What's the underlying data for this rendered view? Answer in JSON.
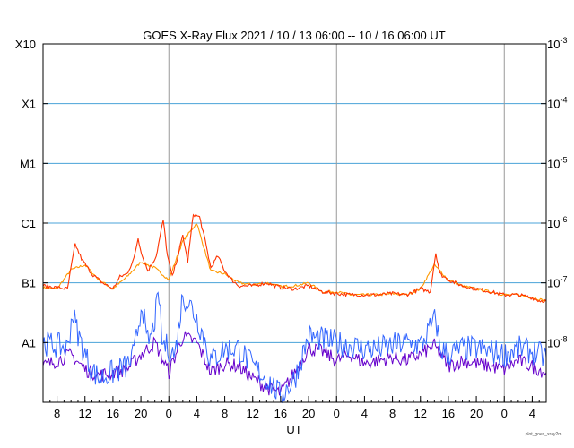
{
  "chart_data": {
    "type": "line",
    "title": "GOES X-Ray Flux   2021 / 10 / 13   06:00 -- 10 / 16   06:00   UT",
    "xlabel": "UT",
    "x_unit": "hours since 2021-10-13 06:00 UT",
    "xlim": [
      0,
      72
    ],
    "y_scale": "log10",
    "ylim_log10": [
      -9,
      -3
    ],
    "left_axis_ticks": [
      {
        "label": "X10",
        "log10": -3
      },
      {
        "label": "X1",
        "log10": -4
      },
      {
        "label": "M1",
        "log10": -5
      },
      {
        "label": "C1",
        "log10": -6
      },
      {
        "label": "B1",
        "log10": -7
      },
      {
        "label": "A1",
        "log10": -8
      }
    ],
    "right_axis_ticks": [
      {
        "base": "10",
        "exp": "-3",
        "log10": -3
      },
      {
        "base": "10",
        "exp": "-4",
        "log10": -4
      },
      {
        "base": "10",
        "exp": "-5",
        "log10": -5
      },
      {
        "base": "10",
        "exp": "-6",
        "log10": -6
      },
      {
        "base": "10",
        "exp": "-7",
        "log10": -7
      },
      {
        "base": "10",
        "exp": "-8",
        "log10": -8
      }
    ],
    "x_ticks": [
      {
        "label": "8",
        "t": 2
      },
      {
        "label": "12",
        "t": 6
      },
      {
        "label": "16",
        "t": 10
      },
      {
        "label": "20",
        "t": 14
      },
      {
        "label": "0",
        "t": 18
      },
      {
        "label": "4",
        "t": 22
      },
      {
        "label": "8",
        "t": 26
      },
      {
        "label": "12",
        "t": 30
      },
      {
        "label": "16",
        "t": 34
      },
      {
        "label": "20",
        "t": 38
      },
      {
        "label": "0",
        "t": 42
      },
      {
        "label": "4",
        "t": 46
      },
      {
        "label": "8",
        "t": 50
      },
      {
        "label": "12",
        "t": 54
      },
      {
        "label": "16",
        "t": 58
      },
      {
        "label": "20",
        "t": 62
      },
      {
        "label": "0",
        "t": 66
      },
      {
        "label": "4",
        "t": 70
      }
    ],
    "day_boundaries": [
      18,
      42,
      66
    ],
    "grid": "horizontal at each decade, vertical at 00 UT",
    "series": [
      {
        "name": "long channel primary",
        "color": "#ff3300",
        "points": [
          [
            0,
            -7.05
          ],
          [
            2,
            -7.08
          ],
          [
            3.5,
            -7.1
          ],
          [
            4,
            -6.75
          ],
          [
            4.6,
            -6.35
          ],
          [
            5.5,
            -6.6
          ],
          [
            7,
            -6.85
          ],
          [
            8.5,
            -7.0
          ],
          [
            10,
            -7.1
          ],
          [
            11,
            -6.9
          ],
          [
            12,
            -6.85
          ],
          [
            13,
            -6.6
          ],
          [
            13.6,
            -6.25
          ],
          [
            14.2,
            -6.55
          ],
          [
            15,
            -6.8
          ],
          [
            16.2,
            -6.55
          ],
          [
            17.2,
            -5.95
          ],
          [
            17.8,
            -6.55
          ],
          [
            18.5,
            -6.9
          ],
          [
            19.4,
            -6.5
          ],
          [
            20,
            -6.2
          ],
          [
            20.7,
            -6.65
          ],
          [
            21.5,
            -5.85
          ],
          [
            22.4,
            -5.9
          ],
          [
            23.2,
            -6.3
          ],
          [
            24,
            -6.75
          ],
          [
            25,
            -6.55
          ],
          [
            26,
            -6.8
          ],
          [
            27,
            -6.95
          ],
          [
            28,
            -7.05
          ],
          [
            30,
            -7.05
          ],
          [
            32,
            -7.0
          ],
          [
            34,
            -7.08
          ],
          [
            36,
            -7.1
          ],
          [
            38,
            -7.05
          ],
          [
            40,
            -7.15
          ],
          [
            42,
            -7.18
          ],
          [
            44,
            -7.2
          ],
          [
            46,
            -7.2
          ],
          [
            48,
            -7.2
          ],
          [
            50,
            -7.18
          ],
          [
            52,
            -7.2
          ],
          [
            54,
            -7.1
          ],
          [
            55.4,
            -7.15
          ],
          [
            56.2,
            -6.5
          ],
          [
            56.8,
            -6.85
          ],
          [
            58,
            -6.95
          ],
          [
            60,
            -7.05
          ],
          [
            62,
            -7.1
          ],
          [
            64,
            -7.15
          ],
          [
            66,
            -7.2
          ],
          [
            68,
            -7.2
          ],
          [
            70,
            -7.25
          ],
          [
            71,
            -7.3
          ],
          [
            72,
            -7.3
          ]
        ]
      },
      {
        "name": "long channel secondary",
        "color": "#ff9900",
        "points": [
          [
            0,
            -7.08
          ],
          [
            2,
            -7.1
          ],
          [
            4,
            -6.78
          ],
          [
            6,
            -6.7
          ],
          [
            8,
            -6.95
          ],
          [
            10,
            -7.1
          ],
          [
            12,
            -6.9
          ],
          [
            14,
            -6.65
          ],
          [
            16,
            -6.75
          ],
          [
            18,
            -6.95
          ],
          [
            20,
            -6.3
          ],
          [
            22,
            -6.0
          ],
          [
            24,
            -6.8
          ],
          [
            26,
            -6.85
          ],
          [
            28,
            -7.0
          ],
          [
            30,
            -7.03
          ],
          [
            32,
            -7.0
          ],
          [
            34,
            -7.06
          ],
          [
            36,
            -7.05
          ],
          [
            38,
            -7.0
          ],
          [
            40,
            -7.15
          ],
          [
            42,
            -7.15
          ],
          [
            44,
            -7.2
          ],
          [
            46,
            -7.2
          ],
          [
            48,
            -7.2
          ],
          [
            50,
            -7.18
          ],
          [
            52,
            -7.2
          ],
          [
            54,
            -7.1
          ],
          [
            56,
            -6.7
          ],
          [
            58,
            -6.95
          ],
          [
            60,
            -7.05
          ],
          [
            62,
            -7.1
          ],
          [
            64,
            -7.15
          ],
          [
            66,
            -7.2
          ],
          [
            68,
            -7.2
          ],
          [
            70,
            -7.25
          ],
          [
            72,
            -7.3
          ]
        ]
      },
      {
        "name": "short channel primary",
        "color": "#3366ff",
        "points": [
          [
            0,
            -8.0
          ],
          [
            2,
            -8.05
          ],
          [
            3.5,
            -8.1
          ],
          [
            4.2,
            -7.5
          ],
          [
            5,
            -7.85
          ],
          [
            6,
            -8.2
          ],
          [
            7,
            -8.45
          ],
          [
            8,
            -8.6
          ],
          [
            10,
            -8.5
          ],
          [
            12,
            -8.4
          ],
          [
            13,
            -8.2
          ],
          [
            14.2,
            -7.3
          ],
          [
            14.8,
            -8.0
          ],
          [
            15.5,
            -7.9
          ],
          [
            16,
            -7.6
          ],
          [
            16.6,
            -7.2
          ],
          [
            17,
            -8.0
          ],
          [
            18,
            -8.1
          ],
          [
            18.9,
            -8.2
          ],
          [
            20,
            -7.2
          ],
          [
            21.2,
            -7.4
          ],
          [
            22,
            -7.6
          ],
          [
            23,
            -7.9
          ],
          [
            24,
            -8.3
          ],
          [
            26,
            -8.1
          ],
          [
            28,
            -8.1
          ],
          [
            30,
            -8.4
          ],
          [
            32,
            -8.6
          ],
          [
            34,
            -8.9
          ],
          [
            36,
            -8.6
          ],
          [
            38,
            -7.9
          ],
          [
            40,
            -7.95
          ],
          [
            42,
            -8.0
          ],
          [
            44,
            -8.05
          ],
          [
            46,
            -8.1
          ],
          [
            48,
            -8.1
          ],
          [
            50,
            -8.05
          ],
          [
            52,
            -8.0
          ],
          [
            54,
            -8.05
          ],
          [
            56.2,
            -7.6
          ],
          [
            56.8,
            -8.1
          ],
          [
            58,
            -8.2
          ],
          [
            60,
            -8.1
          ],
          [
            62,
            -8.1
          ],
          [
            64,
            -8.15
          ],
          [
            66,
            -8.2
          ],
          [
            68,
            -8.1
          ],
          [
            70,
            -8.15
          ],
          [
            72,
            -8.25
          ]
        ]
      },
      {
        "name": "short channel secondary",
        "color": "#6600cc",
        "points": [
          [
            0,
            -8.4
          ],
          [
            2,
            -8.3
          ],
          [
            4,
            -8.2
          ],
          [
            6,
            -8.45
          ],
          [
            8,
            -8.55
          ],
          [
            10,
            -8.5
          ],
          [
            12,
            -8.45
          ],
          [
            14,
            -8.2
          ],
          [
            16,
            -8.0
          ],
          [
            18,
            -8.5
          ],
          [
            20,
            -7.9
          ],
          [
            22,
            -8.0
          ],
          [
            24,
            -8.5
          ],
          [
            26,
            -8.35
          ],
          [
            28,
            -8.4
          ],
          [
            30,
            -8.6
          ],
          [
            32,
            -8.75
          ],
          [
            34,
            -8.85
          ],
          [
            36,
            -8.5
          ],
          [
            38,
            -8.1
          ],
          [
            40,
            -8.15
          ],
          [
            42,
            -8.3
          ],
          [
            44,
            -8.2
          ],
          [
            46,
            -8.35
          ],
          [
            48,
            -8.3
          ],
          [
            50,
            -8.25
          ],
          [
            52,
            -8.3
          ],
          [
            54,
            -8.2
          ],
          [
            56,
            -8.05
          ],
          [
            58,
            -8.4
          ],
          [
            60,
            -8.3
          ],
          [
            62,
            -8.35
          ],
          [
            64,
            -8.4
          ],
          [
            66,
            -8.45
          ],
          [
            68,
            -8.3
          ],
          [
            70,
            -8.4
          ],
          [
            72,
            -8.5
          ]
        ]
      }
    ]
  },
  "footnote": "plot_goes_xray2m"
}
